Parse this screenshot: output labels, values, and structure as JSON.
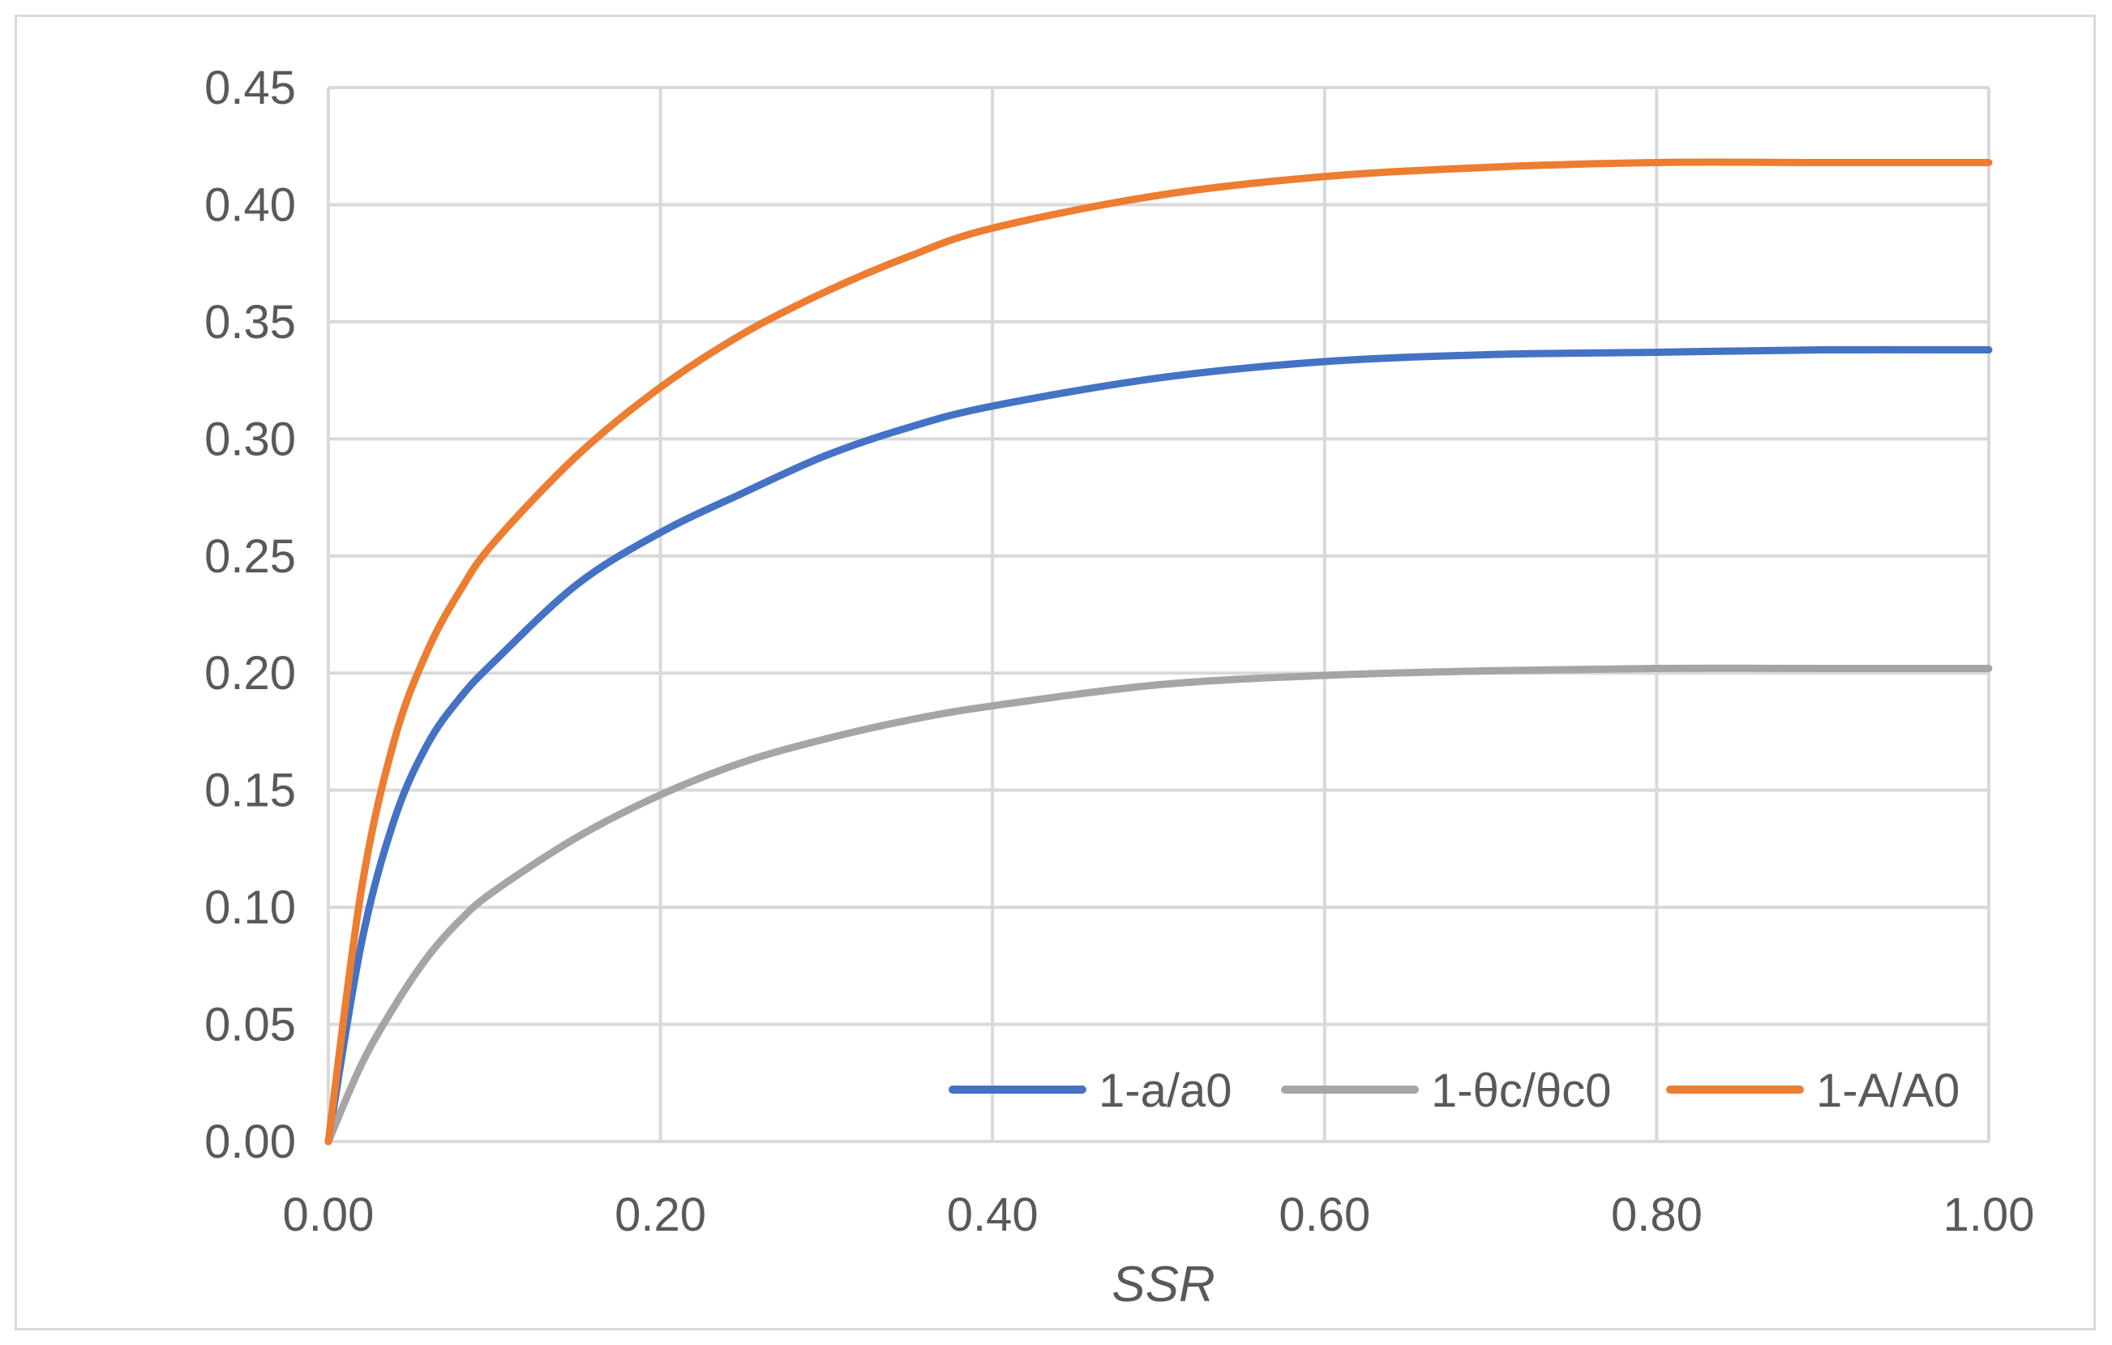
{
  "chart_data": {
    "type": "line",
    "title": "",
    "xlabel": "SSR",
    "ylabel": "",
    "xlim": [
      0,
      1
    ],
    "ylim": [
      0,
      0.45
    ],
    "x_ticks": [
      "0.00",
      "0.20",
      "0.40",
      "0.60",
      "0.80",
      "1.00"
    ],
    "y_ticks": [
      "0.00",
      "0.05",
      "0.10",
      "0.15",
      "0.20",
      "0.25",
      "0.30",
      "0.35",
      "0.40",
      "0.45"
    ],
    "grid": true,
    "legend_position": "bottom-right",
    "x": [
      0,
      0.02,
      0.04,
      0.06,
      0.08,
      0.1,
      0.15,
      0.2,
      0.25,
      0.3,
      0.35,
      0.4,
      0.5,
      0.6,
      0.7,
      0.8,
      0.9,
      1.0
    ],
    "series": [
      {
        "name": "1-a/a0",
        "color": "#4472C4",
        "values": [
          0,
          0.085,
          0.138,
          0.17,
          0.19,
          0.205,
          0.238,
          0.26,
          0.277,
          0.293,
          0.305,
          0.314,
          0.326,
          0.333,
          0.336,
          0.337,
          0.338,
          0.338
        ]
      },
      {
        "name": "1-θc/θc0",
        "color": "#A5A5A5",
        "values": [
          0,
          0.033,
          0.058,
          0.079,
          0.095,
          0.107,
          0.13,
          0.148,
          0.162,
          0.172,
          0.18,
          0.186,
          0.195,
          0.199,
          0.201,
          0.202,
          0.202,
          0.202
        ]
      },
      {
        "name": "1-A/A0",
        "color": "#ED7D31",
        "values": [
          0,
          0.108,
          0.172,
          0.21,
          0.236,
          0.256,
          0.293,
          0.322,
          0.345,
          0.363,
          0.378,
          0.39,
          0.404,
          0.412,
          0.416,
          0.418,
          0.418,
          0.418
        ]
      }
    ]
  }
}
